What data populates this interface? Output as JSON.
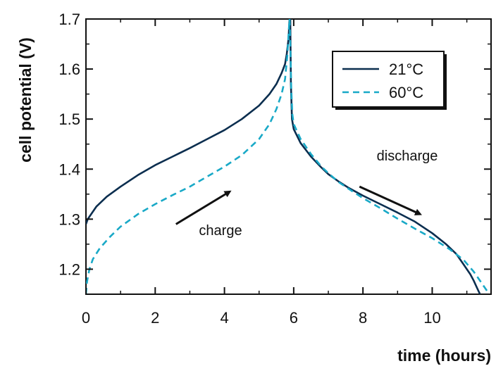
{
  "chart_data": {
    "type": "line",
    "title": "",
    "xlabel": "time (hours)",
    "ylabel": "cell potential (V)",
    "xlim": [
      0,
      11.7
    ],
    "ylim": [
      1.15,
      1.7
    ],
    "xticks": [
      0,
      2,
      4,
      6,
      8,
      10
    ],
    "yticks": [
      1.2,
      1.3,
      1.4,
      1.5,
      1.6,
      1.7
    ],
    "xtick_labels": [
      "0",
      "2",
      "4",
      "6",
      "8",
      "10"
    ],
    "ytick_labels": [
      "1.2",
      "1.3",
      "1.4",
      "1.5",
      "1.6",
      "1.7"
    ],
    "legend_position": "top-right",
    "grid": false,
    "series": [
      {
        "name": "21°C",
        "color": "#0b2e4f",
        "style": "solid",
        "x": [
          0.0,
          0.05,
          0.15,
          0.3,
          0.6,
          1.0,
          1.5,
          2.0,
          2.5,
          3.0,
          3.5,
          4.0,
          4.5,
          5.0,
          5.3,
          5.5,
          5.65,
          5.75,
          5.8,
          5.85,
          5.88,
          5.9,
          5.92,
          5.95,
          6.0,
          6.2,
          6.5,
          6.8,
          7.0,
          7.3,
          7.6,
          8.0,
          8.5,
          9.0,
          9.5,
          10.0,
          10.4,
          10.7,
          10.9,
          11.1,
          11.2,
          11.3,
          11.38
        ],
        "y": [
          1.29,
          1.3,
          1.31,
          1.325,
          1.345,
          1.365,
          1.388,
          1.408,
          1.425,
          1.442,
          1.46,
          1.478,
          1.5,
          1.527,
          1.55,
          1.57,
          1.592,
          1.61,
          1.63,
          1.66,
          1.7,
          1.7,
          1.57,
          1.5,
          1.48,
          1.452,
          1.425,
          1.403,
          1.39,
          1.375,
          1.362,
          1.347,
          1.33,
          1.313,
          1.295,
          1.272,
          1.25,
          1.23,
          1.21,
          1.19,
          1.177,
          1.162,
          1.15
        ]
      },
      {
        "name": "60°C",
        "color": "#19a9c7",
        "style": "dashed",
        "x": [
          0.0,
          0.03,
          0.1,
          0.2,
          0.4,
          0.7,
          1.0,
          1.5,
          2.0,
          2.5,
          3.0,
          3.5,
          4.0,
          4.5,
          5.0,
          5.3,
          5.5,
          5.65,
          5.75,
          5.82,
          5.86,
          5.88,
          5.9,
          5.93,
          5.96,
          6.0,
          6.2,
          6.5,
          6.8,
          7.0,
          7.3,
          7.6,
          8.0,
          8.5,
          9.0,
          9.5,
          10.0,
          10.5,
          10.9,
          11.2,
          11.4,
          11.55,
          11.65
        ],
        "y": [
          1.15,
          1.175,
          1.2,
          1.22,
          1.242,
          1.265,
          1.285,
          1.31,
          1.33,
          1.348,
          1.365,
          1.385,
          1.405,
          1.428,
          1.46,
          1.49,
          1.52,
          1.55,
          1.58,
          1.63,
          1.68,
          1.7,
          1.65,
          1.56,
          1.51,
          1.49,
          1.46,
          1.43,
          1.405,
          1.392,
          1.374,
          1.36,
          1.342,
          1.322,
          1.301,
          1.281,
          1.262,
          1.24,
          1.219,
          1.195,
          1.175,
          1.16,
          1.15
        ]
      }
    ],
    "annotations": [
      {
        "text": "charge",
        "arrow": {
          "from": [
            2.6,
            1.29
          ],
          "to": [
            4.15,
            1.355
          ]
        }
      },
      {
        "text": "discharge",
        "arrow": {
          "from": [
            7.9,
            1.365
          ],
          "to": [
            9.65,
            1.31
          ]
        }
      }
    ]
  }
}
